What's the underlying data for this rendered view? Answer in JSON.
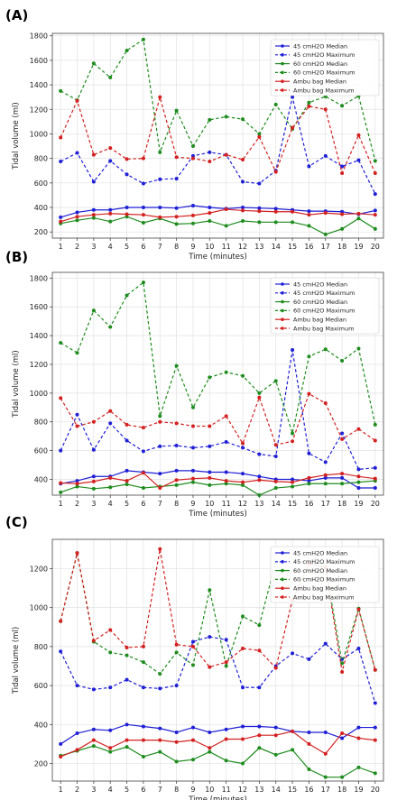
{
  "chart_data": [
    {
      "type": "line",
      "panel_label": "(A)",
      "xlabel": "Time (minutes)",
      "ylabel": "Tidal volume (ml)",
      "x": [
        1,
        2,
        3,
        4,
        5,
        6,
        7,
        8,
        9,
        10,
        11,
        12,
        13,
        14,
        15,
        16,
        17,
        18,
        19,
        20
      ],
      "xlim": [
        0.5,
        20.5
      ],
      "ylim": [
        150,
        1820
      ],
      "yticks": [
        200,
        400,
        600,
        800,
        1000,
        1200,
        1400,
        1600,
        1800
      ],
      "grid": true,
      "legend_position": "top-right",
      "series": [
        {
          "name": "45 cmH2O Median",
          "color": "#1f1fd6",
          "dash": false,
          "values": [
            320,
            360,
            380,
            380,
            400,
            400,
            400,
            395,
            415,
            400,
            390,
            400,
            395,
            390,
            380,
            370,
            370,
            365,
            345,
            375
          ]
        },
        {
          "name": "45 cmH2O Maximum",
          "color": "#1f1fd6",
          "dash": true,
          "values": [
            775,
            845,
            610,
            780,
            670,
            595,
            630,
            635,
            820,
            850,
            830,
            610,
            595,
            700,
            1300,
            735,
            820,
            735,
            785,
            510
          ]
        },
        {
          "name": "60 cmH2O Median",
          "color": "#1e8c1e",
          "dash": false,
          "values": [
            270,
            295,
            315,
            285,
            325,
            275,
            310,
            265,
            270,
            290,
            250,
            290,
            280,
            280,
            280,
            250,
            180,
            225,
            310,
            225
          ]
        },
        {
          "name": "60 cmH2O Maximum",
          "color": "#1e8c1e",
          "dash": true,
          "values": [
            1350,
            1275,
            1575,
            1460,
            1680,
            1770,
            850,
            1190,
            900,
            1115,
            1140,
            1120,
            1000,
            1240,
            1040,
            1255,
            1305,
            1230,
            1310,
            780
          ]
        },
        {
          "name": "Ambu bag Median",
          "color": "#d42020",
          "dash": false,
          "values": [
            285,
            325,
            340,
            350,
            345,
            340,
            320,
            325,
            335,
            355,
            385,
            375,
            370,
            365,
            365,
            340,
            355,
            345,
            350,
            340
          ]
        },
        {
          "name": "Ambu bag Maximum",
          "color": "#d42020",
          "dash": true,
          "values": [
            970,
            1270,
            830,
            885,
            795,
            800,
            1300,
            810,
            800,
            775,
            830,
            790,
            975,
            690,
            1050,
            1225,
            1200,
            680,
            990,
            680
          ]
        }
      ]
    },
    {
      "type": "line",
      "panel_label": "(B)",
      "xlabel": "Time (minutes)",
      "ylabel": "Tidal volume (ml)",
      "x": [
        1,
        2,
        3,
        4,
        5,
        6,
        7,
        8,
        9,
        10,
        11,
        12,
        13,
        14,
        15,
        16,
        17,
        18,
        19,
        20
      ],
      "xlim": [
        0.5,
        20.5
      ],
      "ylim": [
        290,
        1840
      ],
      "yticks": [
        400,
        600,
        800,
        1000,
        1200,
        1400,
        1600,
        1800
      ],
      "grid": true,
      "legend_position": "top-right",
      "series": [
        {
          "name": "45 cmH2O Median",
          "color": "#1f1fd6",
          "dash": false,
          "values": [
            370,
            390,
            420,
            420,
            460,
            450,
            440,
            460,
            460,
            450,
            450,
            440,
            420,
            400,
            400,
            390,
            410,
            410,
            340,
            340
          ]
        },
        {
          "name": "45 cmH2O Maximum",
          "color": "#1f1fd6",
          "dash": true,
          "values": [
            600,
            850,
            605,
            790,
            670,
            595,
            630,
            635,
            620,
            630,
            660,
            620,
            575,
            560,
            1300,
            580,
            520,
            720,
            470,
            480
          ]
        },
        {
          "name": "60 cmH2O Median",
          "color": "#1e8c1e",
          "dash": false,
          "values": [
            310,
            350,
            335,
            345,
            365,
            340,
            350,
            360,
            380,
            360,
            370,
            360,
            290,
            340,
            350,
            370,
            370,
            370,
            380,
            390
          ]
        },
        {
          "name": "60 cmH2O Maximum",
          "color": "#1e8c1e",
          "dash": true,
          "values": [
            1350,
            1280,
            1575,
            1460,
            1680,
            1770,
            840,
            1190,
            900,
            1110,
            1145,
            1120,
            1000,
            1085,
            720,
            1255,
            1305,
            1225,
            1310,
            780
          ]
        },
        {
          "name": "Ambu bag Median",
          "color": "#d42020",
          "dash": false,
          "values": [
            375,
            370,
            385,
            410,
            390,
            445,
            340,
            395,
            405,
            410,
            390,
            380,
            395,
            385,
            380,
            410,
            430,
            440,
            420,
            405
          ]
        },
        {
          "name": "Ambu bag Maximum",
          "color": "#d42020",
          "dash": true,
          "values": [
            965,
            770,
            800,
            875,
            780,
            760,
            800,
            790,
            770,
            770,
            840,
            650,
            970,
            640,
            665,
            995,
            930,
            680,
            750,
            670
          ]
        }
      ]
    },
    {
      "type": "line",
      "panel_label": "(C)",
      "xlabel": "Time (minutes)",
      "ylabel": "Tidal volume (ml)",
      "x": [
        1,
        2,
        3,
        4,
        5,
        6,
        7,
        8,
        9,
        10,
        11,
        12,
        13,
        14,
        15,
        16,
        17,
        18,
        19,
        20
      ],
      "xlim": [
        0.5,
        20.5
      ],
      "ylim": [
        110,
        1350
      ],
      "yticks": [
        200,
        400,
        600,
        800,
        1000,
        1200
      ],
      "grid": true,
      "legend_position": "top-right",
      "series": [
        {
          "name": "45 cmH2O Median",
          "color": "#1f1fd6",
          "dash": false,
          "values": [
            300,
            355,
            375,
            370,
            400,
            390,
            380,
            360,
            385,
            360,
            375,
            390,
            390,
            385,
            365,
            360,
            360,
            330,
            385,
            385
          ]
        },
        {
          "name": "45 cmH2O Maximum",
          "color": "#1f1fd6",
          "dash": true,
          "values": [
            775,
            600,
            580,
            590,
            630,
            590,
            585,
            600,
            825,
            850,
            835,
            590,
            590,
            700,
            765,
            735,
            815,
            735,
            790,
            510
          ]
        },
        {
          "name": "60 cmH2O Median",
          "color": "#1e8c1e",
          "dash": false,
          "values": [
            240,
            265,
            290,
            260,
            285,
            235,
            260,
            210,
            220,
            260,
            215,
            200,
            280,
            245,
            270,
            170,
            130,
            130,
            180,
            150
          ]
        },
        {
          "name": "60 cmH2O Maximum",
          "color": "#1e8c1e",
          "dash": true,
          "values": [
            930,
            1280,
            825,
            770,
            755,
            720,
            660,
            770,
            705,
            1090,
            700,
            955,
            910,
            1235,
            1040,
            1225,
            1210,
            715,
            995,
            680
          ]
        },
        {
          "name": "Ambu bag Median",
          "color": "#d42020",
          "dash": false,
          "values": [
            235,
            270,
            320,
            280,
            320,
            320,
            320,
            310,
            320,
            280,
            325,
            325,
            345,
            345,
            365,
            300,
            250,
            355,
            330,
            320
          ]
        },
        {
          "name": "Ambu bag Maximum",
          "color": "#d42020",
          "dash": true,
          "values": [
            930,
            1280,
            830,
            885,
            795,
            800,
            1300,
            810,
            800,
            695,
            720,
            790,
            780,
            690,
            1040,
            1225,
            1205,
            670,
            990,
            680
          ]
        }
      ]
    }
  ]
}
